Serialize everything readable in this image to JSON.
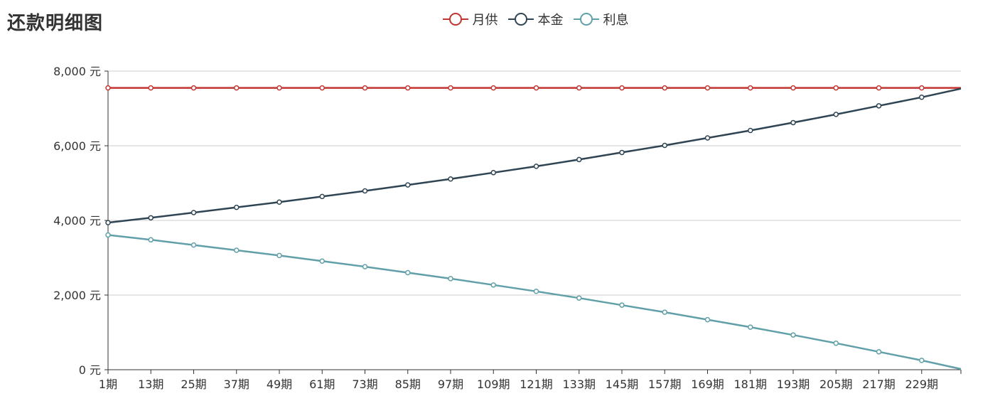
{
  "chart_data": {
    "type": "line",
    "title": "还款明细图",
    "ylim": [
      0,
      8000
    ],
    "yticks": [
      0,
      2000,
      4000,
      6000,
      8000
    ],
    "ytick_labels": [
      "0 元",
      "2,000 元",
      "4,000 元",
      "6,000 元",
      "8,000 元"
    ],
    "x_range": [
      1,
      240
    ],
    "x": [
      1,
      13,
      25,
      37,
      49,
      61,
      73,
      85,
      97,
      109,
      121,
      133,
      145,
      157,
      169,
      181,
      193,
      205,
      217,
      229,
      240
    ],
    "xtick_labels": [
      "1期",
      "13期",
      "25期",
      "37期",
      "49期",
      "61期",
      "73期",
      "85期",
      "97期",
      "109期",
      "121期",
      "133期",
      "145期",
      "157期",
      "169期",
      "181期",
      "193期",
      "205期",
      "217期",
      "229期"
    ],
    "grid": true,
    "legend_position": "top-center",
    "series": [
      {
        "name": "月供",
        "color": "#c23531",
        "values": [
          7550,
          7550,
          7550,
          7550,
          7550,
          7550,
          7550,
          7550,
          7550,
          7550,
          7550,
          7550,
          7550,
          7550,
          7550,
          7550,
          7550,
          7550,
          7550,
          7550,
          7550
        ]
      },
      {
        "name": "本金",
        "color": "#2f4554",
        "values": [
          3940,
          4070,
          4210,
          4350,
          4490,
          4640,
          4790,
          4950,
          5110,
          5280,
          5450,
          5630,
          5820,
          6010,
          6210,
          6410,
          6620,
          6840,
          7070,
          7300,
          7530
        ]
      },
      {
        "name": "利息",
        "color": "#61a0a8",
        "values": [
          3610,
          3480,
          3340,
          3200,
          3060,
          2910,
          2760,
          2600,
          2440,
          2270,
          2100,
          1920,
          1730,
          1540,
          1340,
          1140,
          930,
          710,
          480,
          250,
          20
        ]
      }
    ]
  }
}
